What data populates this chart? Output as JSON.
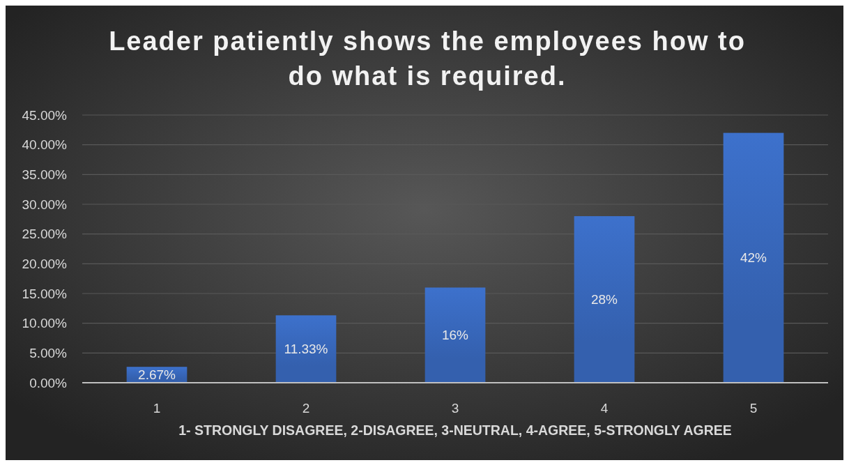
{
  "chart_data": {
    "type": "bar",
    "title": "Leader patiently shows the employees how to do what is required.",
    "xlabel": "1- STRONGLY DISAGREE, 2-DISAGREE, 3-NEUTRAL, 4-AGREE, 5-STRONGLY AGREE",
    "categories": [
      "1",
      "2",
      "3",
      "4",
      "5"
    ],
    "values": [
      2.67,
      11.33,
      16,
      28,
      42
    ],
    "value_labels": [
      "2.67%",
      "11.33%",
      "16%",
      "28%",
      "42%"
    ],
    "color": "#3460ae",
    "ylim": [
      0,
      45
    ],
    "yticks": [
      {
        "value": 0,
        "label": "0.00%"
      },
      {
        "value": 5,
        "label": "5.00%"
      },
      {
        "value": 10,
        "label": "10.00%"
      },
      {
        "value": 15,
        "label": "15.00%"
      },
      {
        "value": 20,
        "label": "20.00%"
      },
      {
        "value": 25,
        "label": "25.00%"
      },
      {
        "value": 30,
        "label": "30.00%"
      },
      {
        "value": 35,
        "label": "35.00%"
      },
      {
        "value": 40,
        "label": "40.00%"
      },
      {
        "value": 45,
        "label": "45.00%"
      }
    ],
    "grid": "y"
  }
}
